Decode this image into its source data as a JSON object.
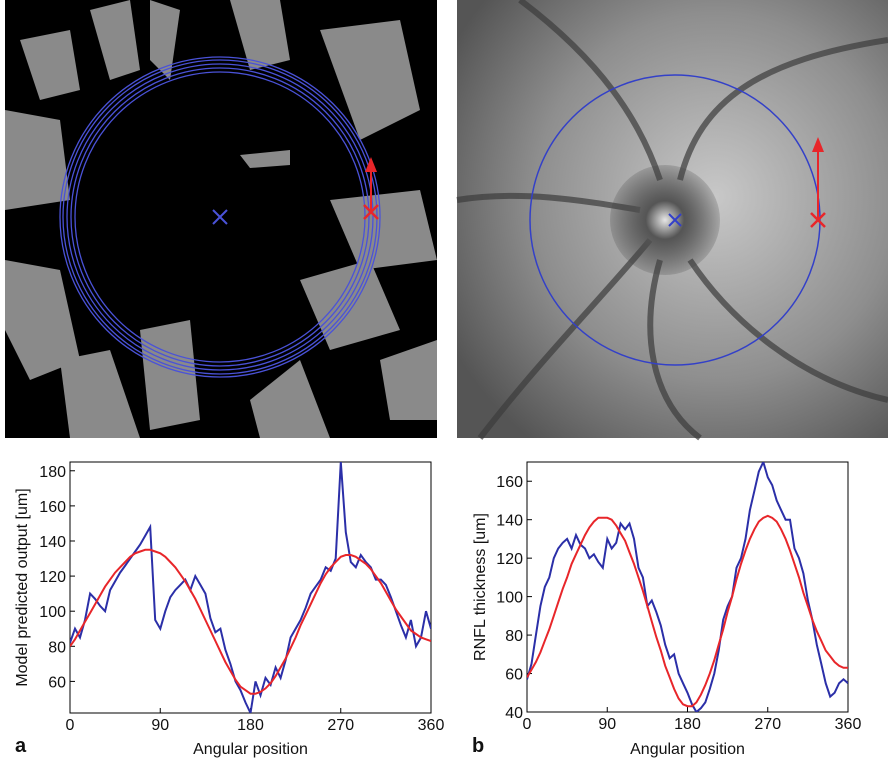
{
  "chart_data": [
    {
      "type": "line",
      "panel_label": "a",
      "xlabel": "Angular position",
      "ylabel": "Model predicted output [um]",
      "x": [
        0,
        5,
        10,
        15,
        20,
        25,
        30,
        35,
        40,
        45,
        50,
        55,
        60,
        65,
        70,
        75,
        80,
        85,
        90,
        95,
        100,
        105,
        110,
        115,
        120,
        125,
        130,
        135,
        140,
        145,
        150,
        155,
        160,
        165,
        170,
        175,
        180,
        185,
        190,
        195,
        200,
        205,
        210,
        215,
        220,
        225,
        230,
        235,
        240,
        245,
        250,
        255,
        260,
        265,
        270,
        275,
        280,
        285,
        290,
        295,
        300,
        305,
        310,
        315,
        320,
        325,
        330,
        335,
        340,
        345,
        350,
        355,
        360
      ],
      "xlim": [
        0,
        360
      ],
      "xticks": [
        0,
        90,
        180,
        270,
        360
      ],
      "ylim": [
        42,
        185
      ],
      "yticks": [
        60,
        80,
        100,
        120,
        140,
        160,
        180
      ],
      "series": [
        {
          "color": "#2b2fa8",
          "values": [
            82,
            90,
            85,
            95,
            110,
            107,
            103,
            100,
            112,
            117,
            122,
            126,
            130,
            134,
            138,
            143,
            148,
            95,
            90,
            100,
            108,
            112,
            115,
            118,
            112,
            120,
            115,
            110,
            96,
            88,
            90,
            78,
            70,
            60,
            55,
            48,
            42,
            60,
            52,
            62,
            58,
            68,
            62,
            72,
            85,
            90,
            95,
            102,
            110,
            114,
            118,
            125,
            123,
            130,
            185,
            145,
            128,
            125,
            132,
            128,
            125,
            118,
            118,
            115,
            108,
            100,
            92,
            85,
            95,
            80,
            85,
            100,
            90
          ]
        },
        {
          "color": "#e8262a",
          "values": [
            80,
            84,
            89,
            94,
            99,
            104,
            109,
            114,
            118,
            122,
            125,
            128,
            131,
            133,
            134,
            135,
            135,
            134,
            133,
            131,
            128,
            125,
            121,
            117,
            112,
            107,
            101,
            95,
            89,
            83,
            77,
            71,
            66,
            61,
            57,
            55,
            53,
            53,
            54,
            56,
            59,
            63,
            68,
            73,
            79,
            85,
            92,
            98,
            104,
            110,
            116,
            121,
            125,
            128,
            131,
            132,
            132,
            131,
            129,
            127,
            124,
            120,
            116,
            111,
            106,
            101,
            97,
            93,
            89,
            87,
            85,
            84,
            83
          ]
        }
      ]
    },
    {
      "type": "line",
      "panel_label": "b",
      "xlabel": "Angular position",
      "ylabel": "RNFL thickness [um]",
      "x": [
        0,
        5,
        10,
        15,
        20,
        25,
        30,
        35,
        40,
        45,
        50,
        55,
        60,
        65,
        70,
        75,
        80,
        85,
        90,
        95,
        100,
        105,
        110,
        115,
        120,
        125,
        130,
        135,
        140,
        145,
        150,
        155,
        160,
        165,
        170,
        175,
        180,
        185,
        190,
        195,
        200,
        205,
        210,
        215,
        220,
        225,
        230,
        235,
        240,
        245,
        250,
        255,
        260,
        265,
        270,
        275,
        280,
        285,
        290,
        295,
        300,
        305,
        310,
        315,
        320,
        325,
        330,
        335,
        340,
        345,
        350,
        355,
        360
      ],
      "xlim": [
        0,
        360
      ],
      "xticks": [
        0,
        90,
        180,
        270,
        360
      ],
      "ylim": [
        40,
        170
      ],
      "yticks": [
        40,
        60,
        80,
        100,
        120,
        140,
        160
      ],
      "series": [
        {
          "color": "#2b2fa8",
          "values": [
            57,
            65,
            80,
            95,
            105,
            110,
            120,
            125,
            128,
            130,
            125,
            132,
            127,
            125,
            120,
            122,
            118,
            115,
            130,
            125,
            128,
            138,
            135,
            138,
            130,
            115,
            110,
            95,
            98,
            92,
            85,
            75,
            68,
            70,
            60,
            55,
            50,
            44,
            40,
            42,
            45,
            52,
            60,
            72,
            88,
            95,
            100,
            115,
            120,
            130,
            145,
            155,
            165,
            170,
            162,
            158,
            150,
            145,
            140,
            140,
            125,
            120,
            112,
            98,
            88,
            75,
            65,
            55,
            48,
            50,
            55,
            57,
            55
          ]
        },
        {
          "color": "#e8262a",
          "values": [
            58,
            62,
            66,
            71,
            77,
            83,
            90,
            97,
            104,
            110,
            117,
            122,
            127,
            132,
            136,
            139,
            141,
            141,
            141,
            140,
            137,
            133,
            129,
            123,
            117,
            110,
            103,
            95,
            87,
            79,
            72,
            64,
            58,
            52,
            47,
            44,
            43,
            43,
            45,
            49,
            54,
            60,
            67,
            75,
            83,
            92,
            100,
            109,
            117,
            124,
            130,
            135,
            139,
            141,
            142,
            141,
            139,
            135,
            130,
            124,
            117,
            110,
            102,
            95,
            88,
            82,
            77,
            72,
            69,
            66,
            64,
            63,
            63
          ]
        }
      ]
    }
  ]
}
